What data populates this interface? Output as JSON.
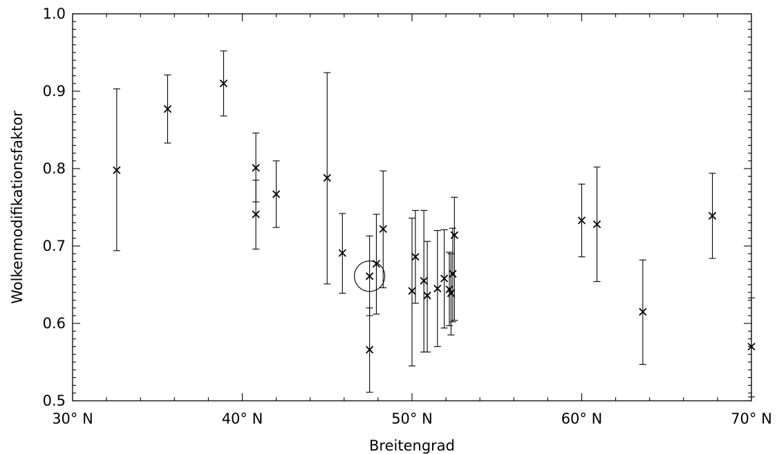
{
  "chart_data": {
    "type": "scatter",
    "title": "",
    "xlabel": "Breitengrad",
    "ylabel": "Wolkenmodifikationsfaktor",
    "xlim": [
      30,
      70
    ],
    "ylim": [
      0.5,
      1.0
    ],
    "x_ticks": [
      30,
      40,
      50,
      60,
      70
    ],
    "x_tick_labels": [
      "30° N",
      "40° N",
      "50° N",
      "60° N",
      "70° N"
    ],
    "y_ticks": [
      0.5,
      0.6,
      0.7,
      0.8,
      0.9,
      1.0
    ],
    "y_tick_labels": [
      "0.5",
      "0.6",
      "0.7",
      "0.8",
      "0.9",
      "1.0"
    ],
    "grid": false,
    "marker": "x",
    "error_bars": true,
    "highlighted_point_index": 15,
    "points": [
      {
        "x": 32.6,
        "y": 0.798,
        "low": 0.694,
        "high": 0.903
      },
      {
        "x": 35.6,
        "y": 0.877,
        "low": 0.833,
        "high": 0.921
      },
      {
        "x": 38.9,
        "y": 0.91,
        "low": 0.868,
        "high": 0.952
      },
      {
        "x": 40.8,
        "y": 0.801,
        "low": 0.757,
        "high": 0.846
      },
      {
        "x": 40.8,
        "y": 0.741,
        "low": 0.696,
        "high": 0.785
      },
      {
        "x": 42.0,
        "y": 0.767,
        "low": 0.724,
        "high": 0.81
      },
      {
        "x": 45.0,
        "y": 0.788,
        "low": 0.651,
        "high": 0.924
      },
      {
        "x": 45.9,
        "y": 0.691,
        "low": 0.639,
        "high": 0.742
      },
      {
        "x": 47.5,
        "y": 0.566,
        "low": 0.511,
        "high": 0.62
      },
      {
        "x": 47.9,
        "y": 0.677,
        "low": 0.612,
        "high": 0.741
      },
      {
        "x": 48.3,
        "y": 0.722,
        "low": 0.646,
        "high": 0.797
      },
      {
        "x": 50.0,
        "y": 0.642,
        "low": 0.545,
        "high": 0.736
      },
      {
        "x": 50.2,
        "y": 0.686,
        "low": 0.626,
        "high": 0.746
      },
      {
        "x": 50.7,
        "y": 0.655,
        "low": 0.563,
        "high": 0.746
      },
      {
        "x": 50.9,
        "y": 0.636,
        "low": 0.563,
        "high": 0.706
      },
      {
        "x": 47.5,
        "y": 0.661,
        "low": 0.61,
        "high": 0.713
      },
      {
        "x": 51.5,
        "y": 0.645,
        "low": 0.57,
        "high": 0.72
      },
      {
        "x": 51.9,
        "y": 0.658,
        "low": 0.594,
        "high": 0.721
      },
      {
        "x": 52.2,
        "y": 0.644,
        "low": 0.597,
        "high": 0.692
      },
      {
        "x": 52.3,
        "y": 0.639,
        "low": 0.585,
        "high": 0.69
      },
      {
        "x": 52.4,
        "y": 0.664,
        "low": 0.602,
        "high": 0.723
      },
      {
        "x": 52.5,
        "y": 0.714,
        "low": 0.604,
        "high": 0.763
      },
      {
        "x": 60.0,
        "y": 0.733,
        "low": 0.686,
        "high": 0.78
      },
      {
        "x": 60.9,
        "y": 0.728,
        "low": 0.654,
        "high": 0.802
      },
      {
        "x": 63.6,
        "y": 0.615,
        "low": 0.547,
        "high": 0.682
      },
      {
        "x": 67.7,
        "y": 0.739,
        "low": 0.684,
        "high": 0.794
      },
      {
        "x": 70.0,
        "y": 0.57,
        "low": 0.505,
        "high": 0.633
      }
    ]
  }
}
